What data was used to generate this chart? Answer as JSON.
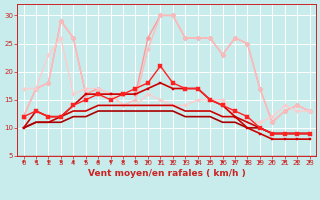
{
  "xlabel": "Vent moyen/en rafales ( km/h )",
  "xlim": [
    -0.5,
    23.5
  ],
  "ylim": [
    5,
    32
  ],
  "yticks": [
    5,
    10,
    15,
    20,
    25,
    30
  ],
  "xticks": [
    0,
    1,
    2,
    3,
    4,
    5,
    6,
    7,
    8,
    9,
    10,
    11,
    12,
    13,
    14,
    15,
    16,
    17,
    18,
    19,
    20,
    21,
    22,
    23
  ],
  "bg_color": "#c8ecec",
  "grid_color": "#ffffff",
  "lines": [
    {
      "x": [
        0,
        1,
        2,
        3,
        4,
        5,
        6,
        7,
        8,
        9,
        10,
        11,
        12,
        13,
        14,
        15,
        16,
        17,
        18,
        19,
        20,
        21,
        22,
        23
      ],
      "y": [
        12,
        13,
        12,
        12,
        14,
        15,
        16,
        15,
        16,
        17,
        18,
        21,
        18,
        17,
        17,
        15,
        14,
        13,
        12,
        10,
        9,
        9,
        9,
        9
      ],
      "color": "#ff2222",
      "lw": 1.0,
      "marker": "s",
      "ms": 2.5,
      "alpha": 1.0,
      "zorder": 5
    },
    {
      "x": [
        0,
        1,
        2,
        3,
        4,
        5,
        6,
        7,
        8,
        9,
        10,
        11,
        12,
        13,
        14,
        15,
        16,
        17,
        18,
        19,
        20,
        21,
        22,
        23
      ],
      "y": [
        10,
        13,
        12,
        12,
        14,
        16,
        16,
        16,
        16,
        16,
        17,
        18,
        17,
        17,
        17,
        15,
        14,
        12,
        10,
        9,
        8,
        8,
        8,
        8
      ],
      "color": "#cc0000",
      "lw": 1.2,
      "marker": "s",
      "ms": 2.0,
      "alpha": 1.0,
      "zorder": 4
    },
    {
      "x": [
        0,
        1,
        2,
        3,
        4,
        5,
        6,
        7,
        8,
        9,
        10,
        11,
        12,
        13,
        14,
        15,
        16,
        17,
        18,
        19,
        20,
        21,
        22,
        23
      ],
      "y": [
        10,
        11,
        11,
        12,
        13,
        13,
        14,
        14,
        14,
        14,
        14,
        14,
        14,
        13,
        13,
        13,
        12,
        12,
        11,
        10,
        9,
        9,
        9,
        9
      ],
      "color": "#cc0000",
      "lw": 1.2,
      "marker": null,
      "ms": 0,
      "alpha": 1.0,
      "zorder": 3
    },
    {
      "x": [
        0,
        1,
        2,
        3,
        4,
        5,
        6,
        7,
        8,
        9,
        10,
        11,
        12,
        13,
        14,
        15,
        16,
        17,
        18,
        19,
        20,
        21,
        22,
        23
      ],
      "y": [
        10,
        11,
        11,
        11,
        12,
        12,
        13,
        13,
        13,
        13,
        13,
        13,
        13,
        12,
        12,
        12,
        11,
        11,
        10,
        10,
        9,
        9,
        9,
        9
      ],
      "color": "#aa0000",
      "lw": 1.2,
      "marker": null,
      "ms": 0,
      "alpha": 1.0,
      "zorder": 3
    },
    {
      "x": [
        0,
        1,
        2,
        3,
        4,
        5,
        6,
        7,
        8,
        9,
        10,
        11,
        12,
        13,
        14,
        15,
        16,
        17,
        18,
        19,
        20,
        21,
        22,
        23
      ],
      "y": [
        12,
        17,
        18,
        29,
        26,
        16,
        17,
        16,
        16,
        16,
        26,
        30,
        30,
        26,
        26,
        26,
        23,
        26,
        25,
        17,
        11,
        13,
        14,
        13
      ],
      "color": "#ff9999",
      "lw": 1.0,
      "marker": "D",
      "ms": 2.5,
      "alpha": 1.0,
      "zorder": 2
    },
    {
      "x": [
        0,
        1,
        2,
        3,
        4,
        5,
        6,
        7,
        8,
        9,
        10,
        11,
        12,
        13,
        14,
        15,
        16,
        17,
        18,
        19,
        20,
        21,
        22,
        23
      ],
      "y": [
        12,
        17,
        18,
        29,
        26,
        16,
        16,
        16,
        14,
        15,
        24,
        30,
        30,
        26,
        26,
        26,
        23,
        26,
        25,
        17,
        11,
        13,
        14,
        13
      ],
      "color": "#ffbbbb",
      "lw": 1.0,
      "marker": "D",
      "ms": 2.0,
      "alpha": 1.0,
      "zorder": 2
    },
    {
      "x": [
        0,
        1,
        2,
        3,
        4,
        5,
        6,
        7,
        8,
        9,
        10,
        11,
        12,
        13,
        14,
        15,
        16,
        17,
        18,
        19,
        20,
        21,
        22,
        23
      ],
      "y": [
        17,
        17,
        23,
        26,
        16,
        17,
        17,
        16,
        14,
        14,
        16,
        15,
        14,
        14,
        15,
        15,
        15,
        12,
        11,
        11,
        12,
        14,
        13,
        13
      ],
      "color": "#ffcccc",
      "lw": 1.0,
      "marker": "D",
      "ms": 2.0,
      "alpha": 1.0,
      "zorder": 2
    }
  ],
  "arrow_color": "#cc2222",
  "tick_label_color": "#cc2222",
  "tick_label_size": 5.0,
  "xlabel_size": 6.5,
  "xlabel_color": "#cc2222",
  "spine_color": "#cc2222"
}
